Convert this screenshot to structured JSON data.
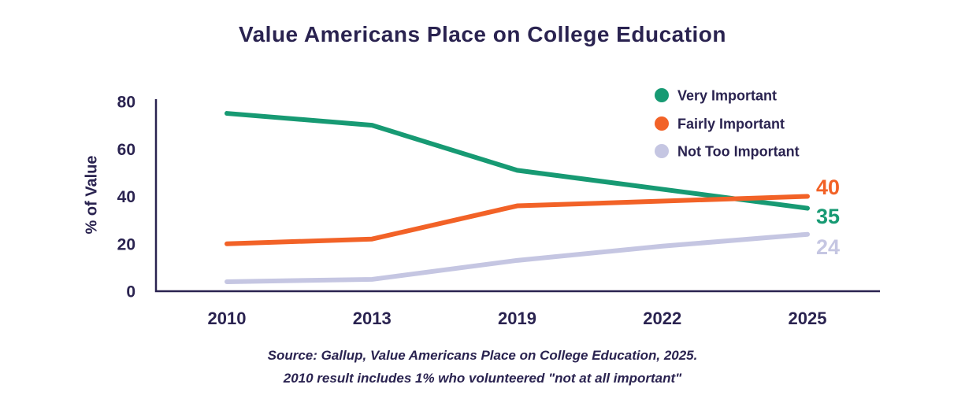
{
  "title": "Value Americans Place on College Education",
  "colors": {
    "navy": "#2a2350",
    "very_important": "#179a73",
    "fairly_important": "#f26227",
    "not_too_important": "#c5c6e2",
    "background": "#ffffff"
  },
  "chart_data": {
    "type": "line",
    "title": "Value Americans Place on College Education",
    "xlabel": "",
    "ylabel": "% of Value",
    "categories": [
      "2010",
      "2013",
      "2019",
      "2022",
      "2025"
    ],
    "yticks": [
      0,
      20,
      40,
      60,
      80
    ],
    "ylim": [
      0,
      80
    ],
    "grid": false,
    "legend_position": "top-right",
    "series": [
      {
        "name": "Very Important",
        "color": "#179a73",
        "values": [
          75,
          70,
          51,
          43,
          35
        ],
        "end_label": "35"
      },
      {
        "name": "Fairly Important",
        "color": "#f26227",
        "values": [
          20,
          22,
          36,
          38,
          40
        ],
        "end_label": "40"
      },
      {
        "name": "Not Too Important",
        "color": "#c5c6e2",
        "values": [
          4,
          5,
          13,
          19,
          24
        ],
        "end_label": "24"
      }
    ],
    "annotations": [
      "40",
      "35",
      "24"
    ]
  },
  "source": {
    "line1": "Source: Gallup, Value Americans Place on College Education, 2025.",
    "line2": "2010 result includes 1% who volunteered \"not at all important\""
  }
}
